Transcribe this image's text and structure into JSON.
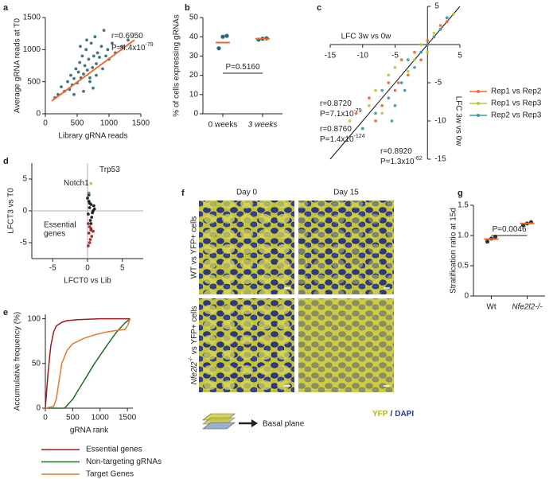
{
  "chart_data": [
    {
      "type": "scatter",
      "panel_label": "a",
      "xlabel": "Library gRNA reads",
      "ylabel": "Average gRNA reads at T0",
      "xlim": [
        0,
        1500
      ],
      "xticks": [
        0,
        500,
        1000,
        1500
      ],
      "ylim": [
        0,
        1500
      ],
      "yticks": [
        0,
        500,
        1000,
        1500
      ],
      "series": [
        {
          "color": "#2b6777",
          "x": [
            150,
            200,
            250,
            300,
            350,
            380,
            400,
            420,
            450,
            480,
            500,
            520,
            540,
            560,
            580,
            600,
            620,
            640,
            660,
            680,
            700,
            720,
            740,
            760,
            780,
            800,
            820,
            850,
            880,
            900,
            920,
            950,
            980,
            1000,
            1050,
            1100,
            1200,
            1300,
            450,
            600,
            700,
            800,
            550,
            650,
            750
          ],
          "y": [
            250,
            300,
            420,
            350,
            500,
            380,
            600,
            450,
            550,
            700,
            480,
            650,
            800,
            560,
            900,
            620,
            750,
            1000,
            680,
            850,
            560,
            1100,
            720,
            900,
            1200,
            780,
            950,
            880,
            1050,
            700,
            1300,
            900,
            1000,
            850,
            1100,
            950,
            1050,
            1150,
            300,
            350,
            500,
            600,
            1050,
            1150,
            400
          ]
        }
      ],
      "trend_line": {
        "color": "#ee6a2c",
        "x": [
          100,
          1400
        ],
        "y": [
          200,
          1150
        ]
      },
      "annotations": [
        {
          "text": "r=0.6950",
          "color": "#ee6a2c"
        },
        {
          "text": "P=4.4x10",
          "sup": "-79",
          "color": "#ee6a2c"
        }
      ]
    },
    {
      "type": "dot",
      "panel_label": "b",
      "ylabel": "% of cells expressing gRNAs",
      "categories": [
        "0 weeks",
        "3 weeks"
      ],
      "points": [
        [
          34,
          40,
          40.5
        ],
        [
          38.5,
          39,
          39.2
        ]
      ],
      "means": [
        37,
        39
      ],
      "point_color": "#2b6777",
      "mean_color": "#ee6a2c",
      "ylim": [
        0,
        50
      ],
      "yticks": [
        0,
        10,
        20,
        30,
        40,
        50
      ],
      "annotations": [
        {
          "text": "P=0.5160"
        }
      ]
    },
    {
      "type": "scatter",
      "panel_label": "c",
      "xlabel": "LFC 3w vs 0w",
      "ylabel": "LFC 3w vs 0w",
      "axes_cross_at_zero": true,
      "identity_line": true,
      "xlim": [
        -15,
        5
      ],
      "xticks": [
        -15,
        -10,
        -5,
        5
      ],
      "ylim": [
        -15,
        5
      ],
      "yticks": [
        -15,
        -10,
        -5,
        5
      ],
      "legend": "right",
      "series": [
        {
          "name": "Rep1 vs Rep2",
          "color": "#ee6a2c",
          "x": [
            -11,
            -9,
            -8,
            -6,
            -5,
            -4,
            -3,
            -2,
            -1,
            0,
            1,
            2,
            3,
            -7,
            -4.5
          ],
          "y": [
            -9,
            -7,
            -10,
            -5,
            -6,
            -2,
            -4,
            -1,
            -2,
            0.5,
            1,
            2.5,
            3,
            -8,
            -5
          ]
        },
        {
          "name": "Rep1 vs Rep3",
          "color": "#b5c93a",
          "x": [
            -12,
            -10,
            -8,
            -7,
            -5,
            -3,
            -2,
            -1,
            0,
            1,
            2,
            3,
            4,
            -6,
            -9
          ],
          "y": [
            -10,
            -11,
            -6,
            -9,
            -3,
            -3.5,
            -2,
            0,
            -1,
            1.5,
            2,
            3.5,
            4,
            -4,
            -8
          ]
        },
        {
          "name": "Rep2 vs Rep3",
          "color": "#3a9aa8",
          "x": [
            -10,
            -8,
            -7,
            -6,
            -5,
            -4,
            -3,
            -2,
            -1,
            0,
            1,
            2,
            3,
            -5.5,
            -3.5
          ],
          "y": [
            -11,
            -9,
            -6,
            -7,
            -8,
            -5,
            -2,
            -3,
            -1,
            0,
            1,
            2,
            3.5,
            -10,
            -6
          ]
        }
      ],
      "annotations": [
        {
          "text": "r=0.8720",
          "color": "#ee6a2c"
        },
        {
          "text": "P=7.1x10",
          "sup": "-79",
          "color": "#ee6a2c"
        },
        {
          "text": "r=0.8760",
          "color": "#b5c93a"
        },
        {
          "text": "P=1.4x10",
          "sup": "-124",
          "color": "#b5c93a"
        },
        {
          "text": "r=0.8920",
          "color": "#3a9aa8"
        },
        {
          "text": "P=1.3x10",
          "sup": "-62",
          "color": "#3a9aa8"
        }
      ]
    },
    {
      "type": "scatter",
      "panel_label": "d",
      "xlabel": "LFCT0 vs Lib",
      "ylabel": "LFCT3 vs T0",
      "zero_lines": true,
      "xlim": [
        -8,
        8
      ],
      "xticks": [
        -5,
        0,
        5
      ],
      "ylim": [
        -7.5,
        7.5
      ],
      "yticks": [
        -5,
        0,
        5
      ],
      "series": [
        {
          "color": "#111111",
          "x": [
            0,
            0.2,
            0.5,
            0.3,
            0.8,
            0.1,
            0.6,
            0.4,
            0.9,
            0.2,
            0.7,
            0.3,
            1.0,
            0.5
          ],
          "y": [
            2,
            1.5,
            1,
            0.5,
            0,
            -0.5,
            -1,
            -1.5,
            0.8,
            2.5,
            -0.3,
            1.2,
            0.3,
            -2
          ]
        },
        {
          "color": "#a01a1a",
          "x": [
            0.1,
            0.3,
            0.5,
            0.2,
            0.6,
            0.4,
            0.8,
            0.3,
            0.1,
            0.5
          ],
          "y": [
            -2,
            -2.5,
            -3,
            -3.5,
            -4,
            -4.5,
            -3.2,
            -5,
            -5.5,
            -2.8
          ]
        },
        {
          "color": "#2e9a3a",
          "x": [
            0.2
          ],
          "y": [
            2.8
          ]
        },
        {
          "color": "#b5c93a",
          "x": [
            0.5
          ],
          "y": [
            4.3
          ]
        }
      ],
      "annotations": [
        {
          "text": "Trp53",
          "color": "#b5c93a"
        },
        {
          "text": "Notch1",
          "color": "#2e9a3a"
        },
        {
          "text": [
            "Essential",
            "genes"
          ],
          "color": "#a01a1a"
        }
      ]
    },
    {
      "type": "line",
      "panel_label": "e",
      "xlabel": "gRNA rank",
      "ylabel": "Accumulative frequency (%)",
      "xlim": [
        0,
        1600
      ],
      "xticks": [
        0,
        500,
        1000,
        1500
      ],
      "ylim": [
        0,
        105
      ],
      "yticks": [
        0,
        50,
        100
      ],
      "legend": "bottom",
      "series": [
        {
          "name": "Essential genes",
          "color": "#a01a1a",
          "x": [
            0,
            50,
            100,
            150,
            200,
            300,
            400,
            600,
            1000,
            1550
          ],
          "y": [
            0,
            40,
            70,
            85,
            92,
            96,
            98,
            99,
            100,
            100
          ]
        },
        {
          "name": "Non-targeting gRNAs",
          "color": "#1f6b2a",
          "x": [
            0,
            350,
            500,
            700,
            900,
            1100,
            1300,
            1450,
            1550
          ],
          "y": [
            0,
            0,
            10,
            30,
            50,
            68,
            85,
            95,
            100
          ]
        },
        {
          "name": "Target Genes",
          "color": "#e07a30",
          "x": [
            0,
            150,
            200,
            250,
            300,
            400,
            500,
            700,
            900,
            1100,
            1300,
            1450,
            1500,
            1550
          ],
          "y": [
            0,
            2,
            10,
            30,
            50,
            65,
            72,
            78,
            82,
            85,
            87,
            88,
            92,
            100
          ]
        }
      ]
    },
    {
      "type": "dot",
      "panel_label": "g",
      "ylabel": "Stratification ratio at 15d",
      "categories": [
        "Wt",
        "Nfe2l2-/-"
      ],
      "points": [
        [
          0.9,
          0.95,
          0.98
        ],
        [
          1.17,
          1.2,
          1.22
        ]
      ],
      "means": [
        0.94,
        1.2
      ],
      "point_color": "#333333",
      "mean_color": "#ee6a2c",
      "ylim": [
        0,
        1.5
      ],
      "yticks": [
        0,
        0.5,
        {
          "value": 1,
          "label": "1.0"
        },
        1.5
      ],
      "annotations": [
        {
          "text": "P=0.0046"
        }
      ]
    }
  ],
  "image_panel": {
    "panel_label": "f",
    "columns": [
      "Day 0",
      "Day 15"
    ],
    "rows": [
      [
        "WT vs YFP+ cells"
      ],
      [
        "Nfe2l2",
        "-/-",
        " vs YFP+ cells"
      ]
    ],
    "schematic_label": "Basal plane",
    "stain_labels": [
      "YFP",
      "/",
      "DAPI"
    ]
  }
}
